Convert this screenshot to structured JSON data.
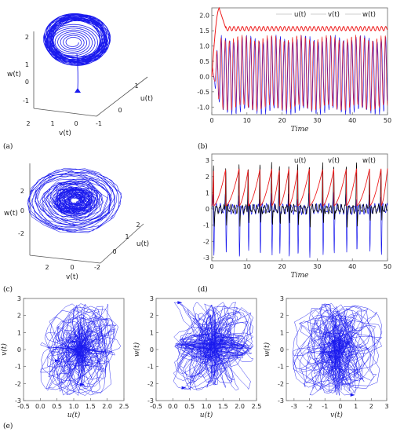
{
  "panel_labels": [
    "(a)",
    "(b)",
    "(c)",
    "(d)",
    "(e)"
  ],
  "colors": {
    "u": "#000000",
    "v": "#ee1c1c",
    "w": "#1a1aee",
    "curve": "#1a1aee",
    "axis": "#555555"
  },
  "chart_data": [
    {
      "id": "a",
      "type": "line",
      "subtype": "3d-phase-portrait",
      "xlabel": "v(t)",
      "ylabel": "u(t)",
      "zlabel": "w(t)",
      "x_ticks": [
        "2",
        "1",
        "0",
        "-1"
      ],
      "y_ticks": [
        "0",
        "1"
      ],
      "z_ticks": [
        "-1",
        "0",
        "1"
      ],
      "description": "limit-cycle-like attractor"
    },
    {
      "id": "b",
      "type": "line",
      "title": "",
      "xlabel": "Time",
      "ylabel": "",
      "xlim": [
        0,
        50
      ],
      "ylim": [
        -1.25,
        2.25
      ],
      "x_ticks": [
        "0",
        "10",
        "20",
        "30",
        "40",
        "50"
      ],
      "y_ticks": [
        "-1.0",
        "-0.5",
        "0.0",
        "0.5",
        "1.0",
        "1.5",
        "2.0"
      ],
      "legend_position": "top-right",
      "series": [
        {
          "name": "u(t)",
          "color": "#000000",
          "peak": 2.25,
          "settles_min": 1.5,
          "settles_max": 1.65,
          "period": 1.2
        },
        {
          "name": "v(t)",
          "color": "#ee1c1c",
          "min": -1.0,
          "max": 1.4,
          "period": 1.2
        },
        {
          "name": "w(t)",
          "color": "#1a1aee",
          "min": -1.25,
          "max": 1.3,
          "period": 1.2
        }
      ]
    },
    {
      "id": "c",
      "type": "line",
      "subtype": "3d-phase-portrait",
      "xlabel": "v(t)",
      "ylabel": "u(t)",
      "zlabel": "w(t)",
      "x_ticks": [
        "2",
        "0",
        "-2"
      ],
      "y_ticks": [
        "0",
        "1",
        "2"
      ],
      "z_ticks": [
        "-2",
        "0",
        "2"
      ],
      "description": "chaotic attractor"
    },
    {
      "id": "d",
      "type": "line",
      "xlabel": "Time",
      "ylabel": "",
      "xlim": [
        0,
        50
      ],
      "ylim": [
        -3.2,
        3.4
      ],
      "x_ticks": [
        "0",
        "10",
        "20",
        "30",
        "40",
        "50"
      ],
      "y_ticks": [
        "-3",
        "-2",
        "-1",
        "0",
        "1",
        "2",
        "3"
      ],
      "legend_position": "top-right",
      "series": [
        {
          "name": "u(t)",
          "color": "#ee1c1c",
          "min": 0.0,
          "max": 2.5
        },
        {
          "name": "v(t)",
          "color": "#000000",
          "min": -2.2,
          "max": 3.2
        },
        {
          "name": "w(t)",
          "color": "#1a1aee",
          "min": -3.2,
          "max": 2.5
        }
      ]
    },
    {
      "id": "e1",
      "type": "line",
      "subtype": "2d-phase-portrait",
      "xlabel": "u(t)",
      "ylabel": "v(t)",
      "xlim": [
        -0.5,
        2.5
      ],
      "ylim": [
        -3,
        3
      ],
      "x_ticks": [
        "-0.5",
        "0.0",
        "0.5",
        "1.0",
        "1.5",
        "2.0",
        "2.5"
      ],
      "y_ticks": [
        "-3",
        "-2",
        "-1",
        "0",
        "1",
        "2",
        "3"
      ]
    },
    {
      "id": "e2",
      "type": "line",
      "subtype": "2d-phase-portrait",
      "xlabel": "u(t)",
      "ylabel": "w(t)",
      "xlim": [
        -0.5,
        2.5
      ],
      "ylim": [
        -3,
        3
      ],
      "x_ticks": [
        "-0.5",
        "0.0",
        "0.5",
        "1.0",
        "1.5",
        "2.0",
        "2.5"
      ],
      "y_ticks": [
        "-3",
        "-2",
        "-1",
        "0",
        "1",
        "2",
        "3"
      ]
    },
    {
      "id": "e3",
      "type": "line",
      "subtype": "2d-phase-portrait",
      "xlabel": "v(t)",
      "ylabel": "w(t)",
      "xlim": [
        -3.5,
        3.0
      ],
      "ylim": [
        -3,
        3
      ],
      "x_ticks": [
        "-3",
        "-2",
        "-1",
        "0",
        "1",
        "2",
        "3"
      ],
      "y_ticks": [
        "-3",
        "-2",
        "-1",
        "0",
        "1",
        "2",
        "3"
      ]
    }
  ]
}
